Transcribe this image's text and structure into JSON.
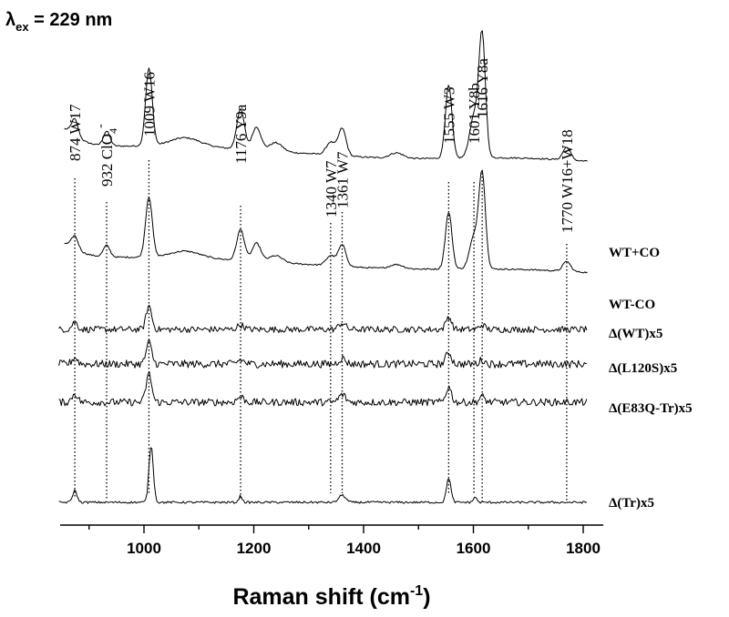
{
  "chart_data": {
    "type": "line",
    "title": "λex = 229 nm",
    "title_parts": {
      "symbol": "λ",
      "subscript": "ex",
      "rest": " = 229 nm"
    },
    "xlabel": "Raman shift (cm-1)",
    "xlabel_parts": {
      "main": "Raman shift (cm",
      "sup": "-1",
      "close": ")"
    },
    "ylabel": "",
    "xlim": [
      840,
      1830
    ],
    "x_ticks": [
      1000,
      1200,
      1400,
      1600,
      1800
    ],
    "x_tick_labels": [
      "1000",
      "1200",
      "1400",
      "1600",
      "1800"
    ],
    "grid": false,
    "y_axis_visible": false,
    "series": [
      {
        "name": "WT+CO",
        "label": "WT+CO"
      },
      {
        "name": "WT-CO",
        "label": "WT-CO"
      },
      {
        "name": "Δ(WT)x5",
        "label": "Δ(WT)x5"
      },
      {
        "name": "Δ(L120S)x5",
        "label": "Δ(L120S)x5"
      },
      {
        "name": "Δ(E83Q-Tr)x5",
        "label": "Δ(E83Q-Tr)x5"
      },
      {
        "name": "Δ(Tr)x5",
        "label": "Δ(Tr)x5"
      }
    ],
    "peak_annotations": [
      {
        "x": 874,
        "label": "874  W17"
      },
      {
        "x": 932,
        "label": "932  ClO",
        "sub": "4",
        "sup": "-"
      },
      {
        "x": 1009,
        "label": "1009  W16"
      },
      {
        "x": 1176,
        "label": "1176  Y9a"
      },
      {
        "x": 1340,
        "label": "1340  W7"
      },
      {
        "x": 1361,
        "label": "1361  W7"
      },
      {
        "x": 1555,
        "label": "1555  W3"
      },
      {
        "x": 1601,
        "label": "1601  Y8b"
      },
      {
        "x": 1616,
        "label": "1616  Y8a"
      },
      {
        "x": 1770,
        "label": "1770  W16+W18"
      }
    ]
  }
}
